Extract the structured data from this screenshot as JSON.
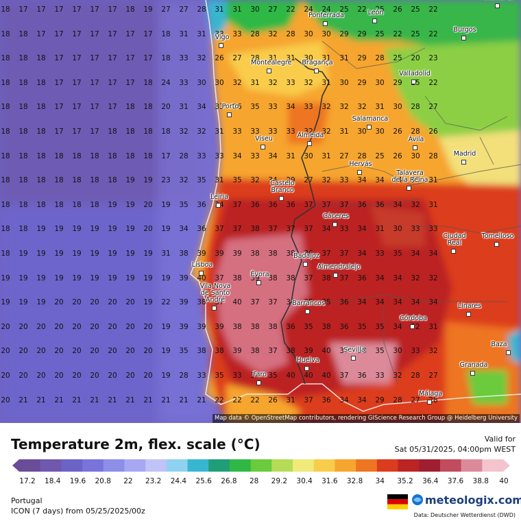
{
  "map": {
    "attribution": "Map data © OpenStreetMap contributors, rendering GIScience Research Group @ Heidelberg University",
    "grid": {
      "rows": [
        [
          18,
          17,
          17,
          17,
          17,
          17,
          17,
          18,
          19,
          27,
          27,
          28,
          31,
          31,
          30,
          27,
          22,
          24,
          24,
          25,
          22,
          25,
          26,
          25,
          22
        ],
        [
          18,
          18,
          17,
          17,
          17,
          17,
          17,
          17,
          17,
          18,
          31,
          31,
          33,
          33,
          28,
          32,
          28,
          30,
          30,
          29,
          29,
          25,
          22,
          25,
          22
        ],
        [
          18,
          18,
          18,
          17,
          17,
          17,
          17,
          17,
          17,
          18,
          33,
          32,
          26,
          27,
          28,
          31,
          31,
          30,
          31,
          31,
          29,
          28,
          25,
          20,
          23
        ],
        [
          18,
          18,
          18,
          17,
          17,
          17,
          17,
          17,
          18,
          24,
          33,
          30,
          30,
          32,
          31,
          32,
          33,
          32,
          31,
          30,
          29,
          30,
          29,
          25,
          22
        ],
        [
          18,
          18,
          18,
          17,
          17,
          17,
          17,
          18,
          18,
          20,
          31,
          34,
          33,
          36,
          35,
          33,
          34,
          33,
          32,
          32,
          32,
          31,
          30,
          28,
          27
        ],
        [
          18,
          18,
          18,
          17,
          17,
          17,
          18,
          18,
          18,
          18,
          32,
          32,
          31,
          33,
          33,
          33,
          33,
          32,
          32,
          31,
          30,
          30,
          26,
          28,
          26
        ],
        [
          18,
          18,
          18,
          18,
          18,
          18,
          18,
          18,
          18,
          17,
          28,
          33,
          33,
          34,
          33,
          34,
          31,
          30,
          31,
          27,
          28,
          25,
          26,
          30,
          28
        ],
        [
          18,
          18,
          18,
          18,
          18,
          18,
          18,
          19,
          19,
          23,
          32,
          35,
          31,
          35,
          32,
          34,
          29,
          27,
          32,
          33,
          34,
          34,
          34,
          33,
          31
        ],
        [
          18,
          18,
          18,
          18,
          18,
          18,
          19,
          19,
          20,
          19,
          35,
          36,
          34,
          37,
          36,
          36,
          36,
          37,
          37,
          37,
          36,
          36,
          34,
          32,
          31
        ],
        [
          18,
          18,
          19,
          19,
          19,
          19,
          19,
          19,
          20,
          19,
          34,
          36,
          37,
          37,
          38,
          37,
          37,
          37,
          34,
          33,
          34,
          31,
          30,
          33,
          33
        ],
        [
          18,
          19,
          19,
          19,
          19,
          19,
          19,
          19,
          19,
          31,
          38,
          39,
          39,
          39,
          38,
          38,
          38,
          36,
          37,
          37,
          34,
          33,
          35,
          34,
          34
        ],
        [
          19,
          19,
          19,
          19,
          19,
          19,
          19,
          19,
          19,
          19,
          39,
          40,
          37,
          38,
          39,
          38,
          38,
          37,
          38,
          37,
          36,
          34,
          34,
          32,
          32
        ],
        [
          19,
          19,
          19,
          20,
          20,
          20,
          20,
          20,
          19,
          22,
          39,
          38,
          37,
          40,
          37,
          37,
          36,
          35,
          35,
          36,
          34,
          34,
          34,
          34,
          34
        ],
        [
          20,
          20,
          20,
          20,
          20,
          20,
          20,
          20,
          20,
          19,
          39,
          39,
          39,
          38,
          38,
          38,
          36,
          35,
          38,
          36,
          35,
          35,
          34,
          32,
          31
        ],
        [
          20,
          20,
          20,
          20,
          20,
          20,
          20,
          20,
          20,
          19,
          35,
          38,
          38,
          39,
          38,
          37,
          38,
          39,
          40,
          39,
          38,
          35,
          30,
          33,
          32
        ],
        [
          20,
          20,
          20,
          20,
          20,
          20,
          20,
          20,
          20,
          19,
          28,
          33,
          35,
          33,
          34,
          35,
          40,
          40,
          40,
          37,
          36,
          33,
          32,
          28,
          27
        ],
        [
          20,
          21,
          21,
          21,
          21,
          21,
          21,
          21,
          21,
          21,
          21,
          21,
          22,
          22,
          22,
          26,
          31,
          37,
          36,
          34,
          34,
          29,
          28,
          27,
          28
        ]
      ]
    },
    "cities": [
      {
        "name": "Vigo"
      },
      {
        "name": "Ponferrada"
      },
      {
        "name": "León"
      },
      {
        "name": "Burgos"
      },
      {
        "name": "Vitoria-G."
      },
      {
        "name": "Montealegre"
      },
      {
        "name": "Bragança"
      },
      {
        "name": "Valladolid"
      },
      {
        "name": "Porto"
      },
      {
        "name": "Salamanca"
      },
      {
        "name": "Almeida"
      },
      {
        "name": "Viseu"
      },
      {
        "name": "Ávila"
      },
      {
        "name": "Madrid"
      },
      {
        "name": "Hervás"
      },
      {
        "name": "Talavera\nde la Reina"
      },
      {
        "name": "Castelo\nBranco"
      },
      {
        "name": "Leiria"
      },
      {
        "name": "Cáceres"
      },
      {
        "name": "Ciudad\nReal"
      },
      {
        "name": "Tomelloso"
      },
      {
        "name": "Badajoz"
      },
      {
        "name": "Lisboa"
      },
      {
        "name": "Évora"
      },
      {
        "name": "Almendralejo"
      },
      {
        "name": "Vila Nova\nde Santo\nAndré"
      },
      {
        "name": "Barrancos"
      },
      {
        "name": "Linares"
      },
      {
        "name": "Córdoba"
      },
      {
        "name": "Baza"
      },
      {
        "name": "Sevilla"
      },
      {
        "name": "Huelva"
      },
      {
        "name": "Granada"
      },
      {
        "name": "Faro"
      },
      {
        "name": "Málaga"
      }
    ]
  },
  "legend": {
    "title": "Temperature 2m, flex. scale (°C)",
    "valid_label": "Valid for",
    "valid_date": "Sat 05/31/2025, 04:00pm WEST",
    "ticks": [
      "17.2",
      "18.4",
      "19.6",
      "20.8",
      "22",
      "23.2",
      "24.4",
      "25.6",
      "26.8",
      "28",
      "29.2",
      "30.4",
      "31.6",
      "32.8",
      "34",
      "35.2",
      "36.4",
      "37.6",
      "38.8",
      "40"
    ],
    "colors": [
      "#6a4d99",
      "#6f58ad",
      "#6c63c6",
      "#7874db",
      "#8c8ee8",
      "#a6a8f2",
      "#bfc3f7",
      "#8ed2ef",
      "#39b6cf",
      "#1f9e78",
      "#2fb845",
      "#6acb3c",
      "#b6dc57",
      "#f0ea7a",
      "#f9cd4c",
      "#f6a52f",
      "#ee7522",
      "#dc3c1e",
      "#bc2424",
      "#9f1f30",
      "#c04c5e",
      "#dc8a9a",
      "#f3c4cd"
    ]
  },
  "footer": {
    "region": "Portugal",
    "model": "ICON (7 days) from 05/25/2025/00z",
    "brand": "meteologix.com",
    "data_credit": "Data: Deutscher Wetterdienst (DWD)"
  }
}
